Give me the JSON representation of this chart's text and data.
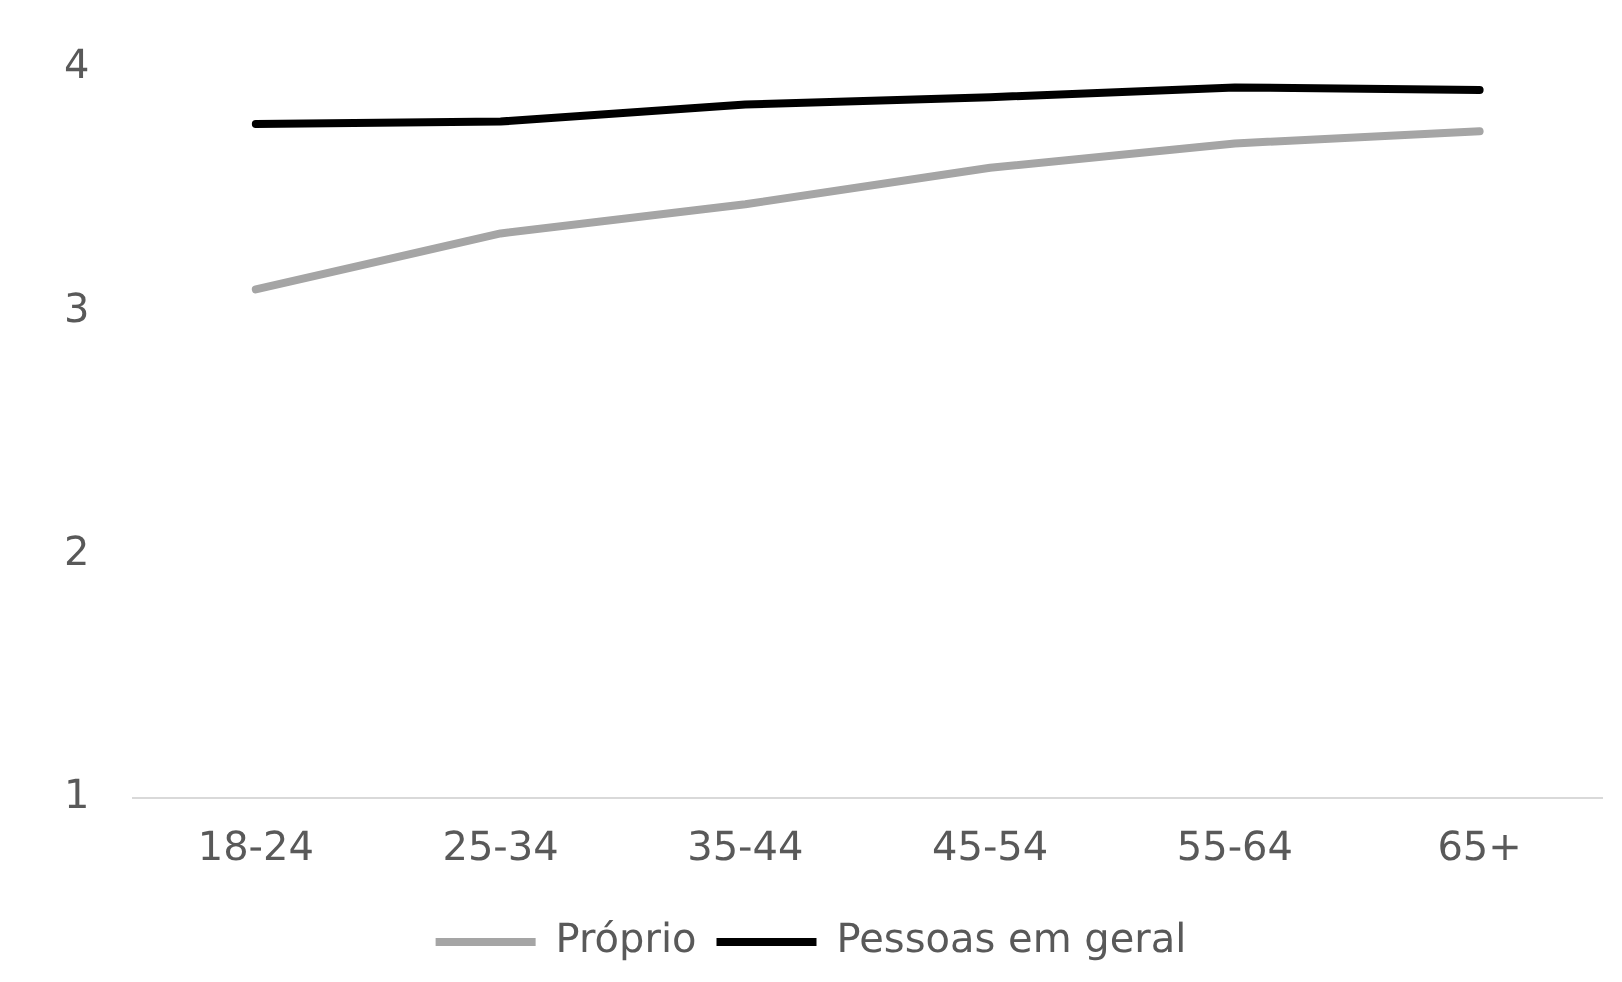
{
  "chart_data": {
    "type": "line",
    "categories": [
      "18-24",
      "25-34",
      "35-44",
      "45-54",
      "55-64",
      "65+"
    ],
    "series": [
      {
        "name": "Próprio",
        "color": "#a5a5a5",
        "values": [
          3.09,
          3.32,
          3.44,
          3.59,
          3.69,
          3.74
        ]
      },
      {
        "name": "Pessoas em geral",
        "color": "#000000",
        "values": [
          3.77,
          3.78,
          3.85,
          3.88,
          3.92,
          3.91
        ]
      }
    ],
    "ylim": [
      1,
      4
    ],
    "yticks": [
      1,
      2,
      3,
      4
    ],
    "grid": false,
    "legend": "bottom",
    "marker": "none",
    "line_style": "solid"
  }
}
